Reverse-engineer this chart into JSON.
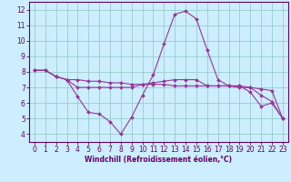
{
  "xlabel": "Windchill (Refroidissement éolien,°C)",
  "background_color": "#cceeff",
  "line_color": "#993399",
  "grid_color": "#99cccc",
  "xlim": [
    -0.5,
    23.5
  ],
  "ylim": [
    3.5,
    12.5
  ],
  "yticks": [
    4,
    5,
    6,
    7,
    8,
    9,
    10,
    11,
    12
  ],
  "xticks": [
    0,
    1,
    2,
    3,
    4,
    5,
    6,
    7,
    8,
    9,
    10,
    11,
    12,
    13,
    14,
    15,
    16,
    17,
    18,
    19,
    20,
    21,
    22,
    23
  ],
  "series1_x": [
    0,
    1,
    2,
    3,
    4,
    5,
    6,
    7,
    8,
    9,
    10,
    11,
    12,
    13,
    14,
    15,
    16,
    17,
    18,
    19,
    20,
    21,
    22,
    23
  ],
  "series1_y": [
    8.1,
    8.1,
    7.7,
    7.5,
    6.4,
    5.4,
    5.3,
    4.8,
    4.0,
    5.1,
    6.5,
    7.8,
    9.8,
    11.7,
    11.9,
    11.4,
    9.4,
    7.5,
    7.1,
    7.1,
    6.7,
    5.8,
    6.0,
    5.0
  ],
  "series2_x": [
    0,
    1,
    2,
    3,
    4,
    5,
    6,
    7,
    8,
    9,
    10,
    11,
    12,
    13,
    14,
    15,
    16,
    17,
    18,
    19,
    20,
    21,
    22,
    23
  ],
  "series2_y": [
    8.1,
    8.1,
    7.7,
    7.5,
    7.5,
    7.4,
    7.4,
    7.3,
    7.3,
    7.2,
    7.2,
    7.2,
    7.2,
    7.1,
    7.1,
    7.1,
    7.1,
    7.1,
    7.1,
    7.0,
    7.0,
    6.9,
    6.8,
    5.0
  ],
  "series3_x": [
    0,
    1,
    2,
    3,
    4,
    5,
    6,
    7,
    8,
    9,
    10,
    11,
    12,
    13,
    14,
    15,
    16,
    17,
    18,
    19,
    20,
    21,
    22,
    23
  ],
  "series3_y": [
    8.1,
    8.1,
    7.7,
    7.5,
    7.0,
    7.0,
    7.0,
    7.0,
    7.0,
    7.0,
    7.2,
    7.3,
    7.4,
    7.5,
    7.5,
    7.5,
    7.1,
    7.1,
    7.1,
    7.1,
    7.0,
    6.5,
    6.1,
    5.0
  ],
  "tick_color": "#660066",
  "tick_fontsize": 5.5,
  "xlabel_fontsize": 5.5
}
